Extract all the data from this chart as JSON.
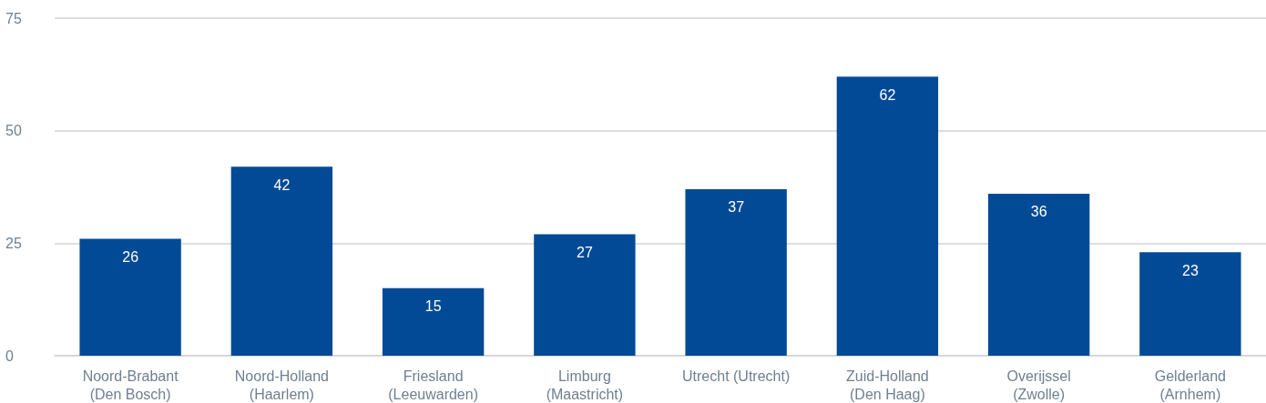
{
  "chart_data": {
    "type": "bar",
    "categories": [
      "Noord-Brabant\n(Den Bosch)",
      "Noord-Holland\n(Haarlem)",
      "Friesland\n(Leeuwarden)",
      "Limburg\n(Maastricht)",
      "Utrecht (Utrecht)",
      "Zuid-Holland\n(Den Haag)",
      "Overijssel\n(Zwolle)",
      "Gelderland\n(Arnhem)"
    ],
    "values": [
      26,
      42,
      15,
      27,
      37,
      62,
      36,
      23
    ],
    "color": "#034a96",
    "ylim": [
      0,
      75
    ],
    "yticks": [
      0,
      25,
      50,
      75
    ],
    "grid": "y",
    "data_labels": true
  }
}
